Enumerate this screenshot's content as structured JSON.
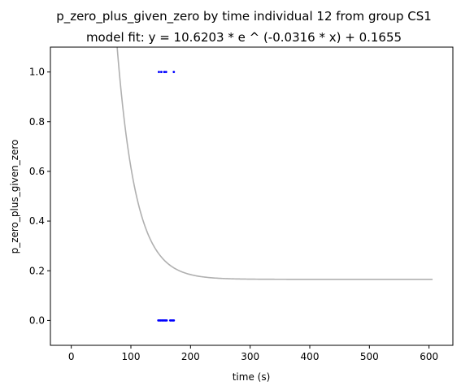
{
  "chart_data": {
    "type": "scatter",
    "title": "p_zero_plus_given_zero by time individual 12 from group CS1",
    "subtitle": "model fit: y = 10.6203 * e ^ (-0.0316 * x) + 0.1655",
    "xlabel": "time (s)",
    "ylabel": "p_zero_plus_given_zero",
    "xlim": [
      -35,
      640
    ],
    "ylim": [
      -0.1,
      1.1
    ],
    "x_ticks": [
      0,
      100,
      200,
      300,
      400,
      500,
      600
    ],
    "y_ticks": [
      0.0,
      0.2,
      0.4,
      0.6,
      0.8,
      1.0
    ],
    "x_tick_labels": [
      "0",
      "100",
      "200",
      "300",
      "400",
      "500",
      "600"
    ],
    "y_tick_labels": [
      "0.0",
      "0.2",
      "0.4",
      "0.6",
      "0.8",
      "1.0"
    ],
    "grid": false,
    "points": [
      {
        "x": 147,
        "y": 1.0
      },
      {
        "x": 151,
        "y": 1.0
      },
      {
        "x": 156,
        "y": 1.0
      },
      {
        "x": 159,
        "y": 1.0
      },
      {
        "x": 172,
        "y": 1.0
      },
      {
        "x": 146,
        "y": 0.0
      },
      {
        "x": 148,
        "y": 0.0
      },
      {
        "x": 150,
        "y": 0.0
      },
      {
        "x": 152,
        "y": 0.0
      },
      {
        "x": 154,
        "y": 0.0
      },
      {
        "x": 156,
        "y": 0.0
      },
      {
        "x": 158,
        "y": 0.0
      },
      {
        "x": 160,
        "y": 0.0
      },
      {
        "x": 166,
        "y": 0.0
      },
      {
        "x": 168,
        "y": 0.0
      },
      {
        "x": 170,
        "y": 0.0
      },
      {
        "x": 172,
        "y": 0.0
      }
    ],
    "fit": {
      "a": 10.6203,
      "b": -0.0316,
      "c": 0.1655,
      "x_range": [
        0,
        607
      ]
    },
    "colors": {
      "points": "#0000ff",
      "fit_line": "#b0b0b0",
      "axes": "#000000"
    }
  }
}
